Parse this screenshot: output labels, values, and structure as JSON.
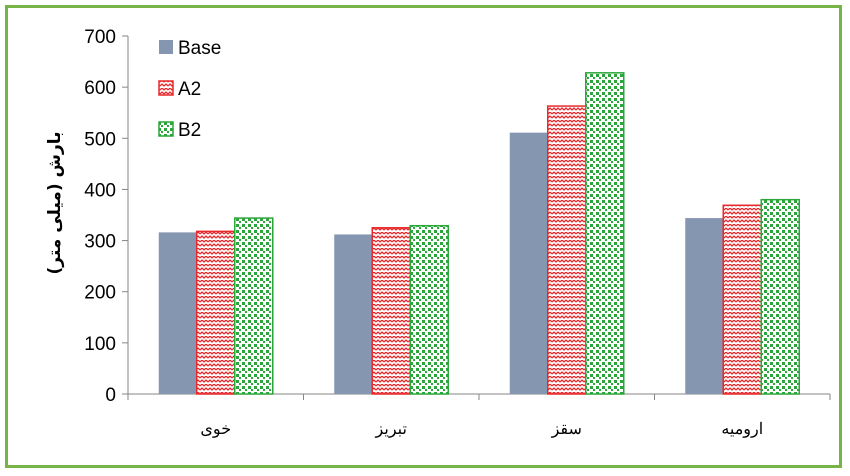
{
  "chart_data": {
    "type": "bar",
    "title": "",
    "xlabel": "",
    "ylabel": "بارش (میلی متر)",
    "ylim": [
      0,
      700
    ],
    "yticks": [
      0,
      100,
      200,
      300,
      400,
      500,
      600,
      700
    ],
    "categories": [
      "خوی",
      "تبریز",
      "سقز",
      "ارومیه"
    ],
    "series": [
      {
        "name": "Base",
        "values": [
          316,
          312,
          511,
          344
        ],
        "color": "#8496b0",
        "pattern": "solid"
      },
      {
        "name": "A2",
        "values": [
          318,
          325,
          563,
          369
        ],
        "color": "#e8282b",
        "pattern": "zigzag"
      },
      {
        "name": "B2",
        "values": [
          344,
          329,
          628,
          380
        ],
        "color": "#2aa63a",
        "pattern": "checker"
      }
    ],
    "legend": "top-left",
    "grid": false
  },
  "frame_color": "#77b347"
}
